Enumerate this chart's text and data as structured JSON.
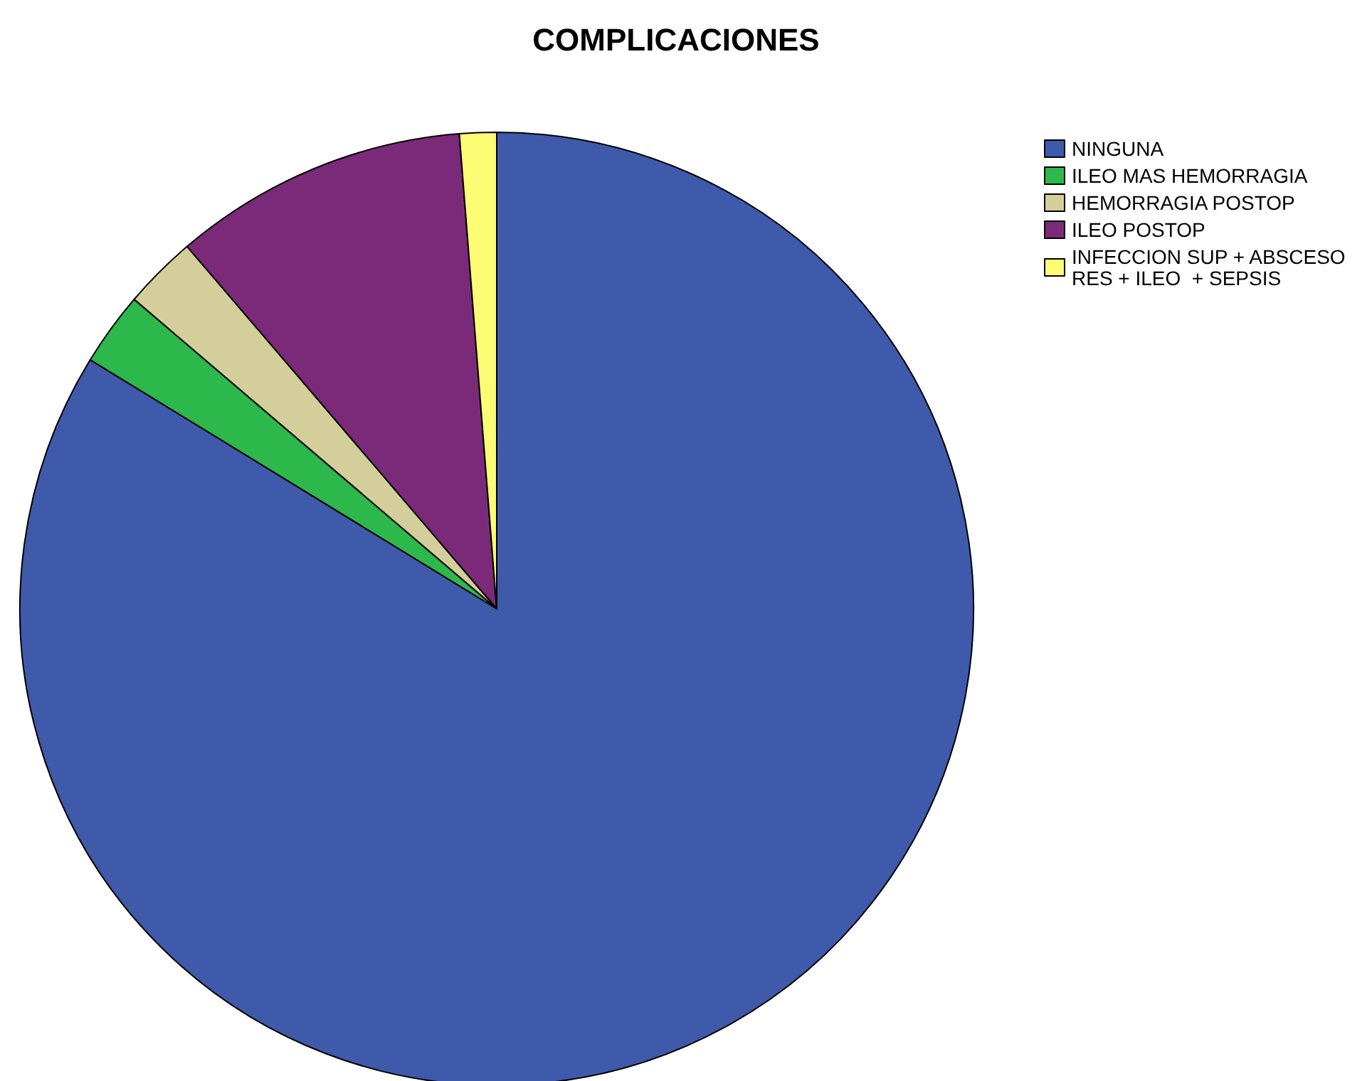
{
  "chart_data": {
    "type": "pie",
    "title": "COMPLICACIONES",
    "categories": [
      "NINGUNA",
      "ILEO MAS HEMORRAGIA",
      "HEMORRAGIA POSTOP",
      "ILEO POSTOP",
      "INFECCION SUP + ABSCESO RES + ILEO  + SEPSIS"
    ],
    "values": [
      83.75,
      2.5,
      2.5,
      10,
      1.25
    ],
    "colors": [
      "#3f5aaa",
      "#2db84b",
      "#d4cf9a",
      "#7b2a7a",
      "#fdfc74"
    ],
    "legend": "top right"
  }
}
